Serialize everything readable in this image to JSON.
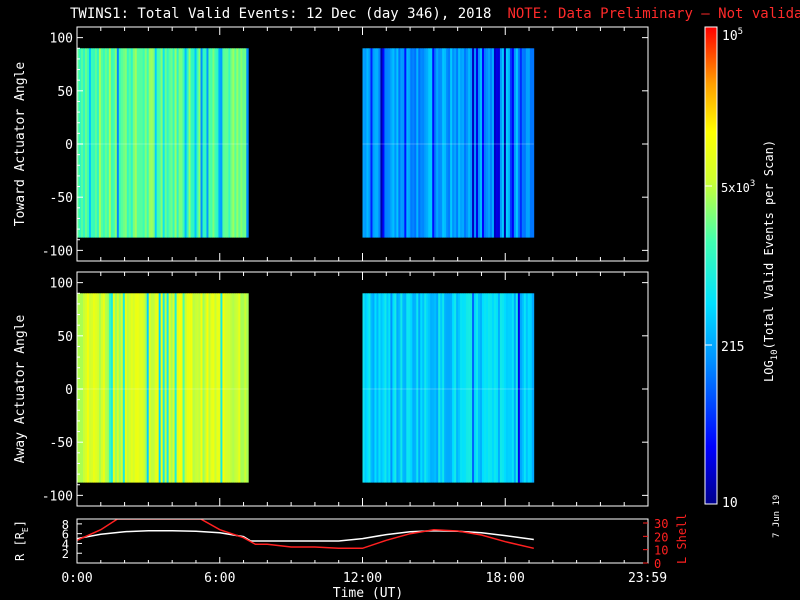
{
  "title": {
    "main": "TWINS1: Total Valid Events: 12 Dec (day 346), 2018",
    "note": "NOTE: Data Preliminary – Not validated"
  },
  "colorbar": {
    "label_prefix": "LOG",
    "label_sub": "10",
    "label_suffix": "(Total Valid Events per Scan)",
    "tick_top_base": "10",
    "tick_top_exp": "5",
    "tick_mid_base": "5x10",
    "tick_mid_exp": "3",
    "tick_215": "215",
    "tick_bottom": "10",
    "scale": "log"
  },
  "time_axis": {
    "label": "Time (UT)",
    "ticks": [
      "0:00",
      "6:00",
      "12:00",
      "18:00",
      "23:59"
    ]
  },
  "orbit_axis": {
    "left_label": "R [R",
    "left_label_sub": "E",
    "left_label_end": "]",
    "left_ticks": [
      "2",
      "4",
      "6",
      "8"
    ],
    "right_label": "L Shell",
    "right_ticks": [
      "0",
      "10",
      "20",
      "30"
    ]
  },
  "stamp": "7 Jun 19",
  "chart_data": [
    {
      "type": "heatmap",
      "panel": "toward",
      "ylabel": "Toward Actuator Angle",
      "yticks": [
        "100",
        "50",
        "0",
        "-50",
        "-100"
      ],
      "ylim": [
        -110,
        110
      ],
      "xlim_hours": [
        0,
        24
      ],
      "data_blocks": [
        {
          "t_start": 0.0,
          "t_end": 7.2,
          "angle_min": -88,
          "angle_max": 90,
          "log_level_typical": 3.3
        },
        {
          "t_start": 12.0,
          "t_end": 19.2,
          "angle_min": -88,
          "angle_max": 90,
          "log_level_typical": 2.3
        }
      ]
    },
    {
      "type": "heatmap",
      "panel": "away",
      "ylabel": "Away Actuator Angle",
      "yticks": [
        "100",
        "50",
        "0",
        "-50",
        "-100"
      ],
      "ylim": [
        -110,
        110
      ],
      "xlim_hours": [
        0,
        24
      ],
      "data_blocks": [
        {
          "t_start": 0.0,
          "t_end": 7.2,
          "angle_min": -88,
          "angle_max": 90,
          "log_level_typical": 3.8
        },
        {
          "t_start": 12.0,
          "t_end": 19.2,
          "angle_min": -88,
          "angle_max": 90,
          "log_level_typical": 2.6
        }
      ]
    },
    {
      "type": "line",
      "panel": "orbit",
      "ylim_left": [
        0,
        9
      ],
      "ylim_right": [
        0,
        33
      ],
      "series": [
        {
          "axis": "left",
          "color": "#ffffff",
          "x": [
            0,
            1,
            2,
            3,
            4,
            5,
            6,
            7,
            7.3,
            8,
            9,
            10,
            11,
            12,
            13,
            14,
            15,
            16,
            17,
            18,
            19.2
          ],
          "y": [
            5.0,
            5.9,
            6.4,
            6.6,
            6.6,
            6.5,
            6.2,
            5.4,
            4.5,
            4.5,
            4.5,
            4.5,
            4.5,
            5.0,
            5.8,
            6.4,
            6.6,
            6.5,
            6.2,
            5.6,
            4.8
          ]
        },
        {
          "axis": "right",
          "color": "#ff2020",
          "x": [
            0,
            1.0,
            1.7,
            5.2,
            6.0,
            7.0,
            7.5,
            8.0,
            9.0,
            10.0,
            11.0,
            12.0,
            13.0,
            14.0,
            15.0,
            16.0,
            17.0,
            18.0,
            19.2
          ],
          "y": [
            17,
            25,
            33,
            33,
            25,
            19,
            14,
            14,
            12,
            12,
            11,
            11,
            17,
            22,
            25,
            24,
            21,
            16,
            11
          ]
        }
      ]
    }
  ]
}
